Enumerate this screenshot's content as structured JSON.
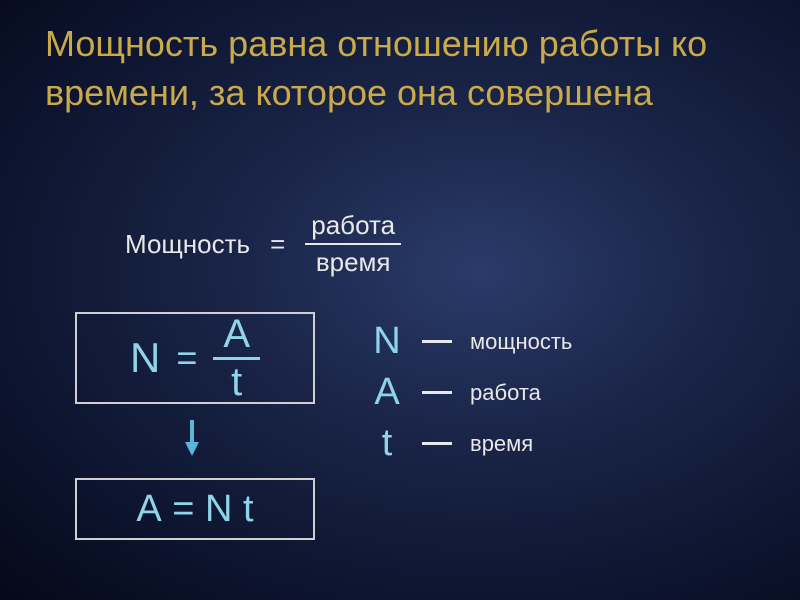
{
  "colors": {
    "heading": "#c9a94a",
    "text_white": "#e8e8e8",
    "text_cyan": "#8fd4e8",
    "bar_white": "#e8e8e8",
    "box_border": "#cfcfcf",
    "arrow": "#5bb5d8"
  },
  "heading": "Мощность равна  отношению работы ко времени, за которое она совершена",
  "word_formula": {
    "lhs": "Мощность",
    "eq": "=",
    "numerator": "работа",
    "denominator": "время"
  },
  "formula1": {
    "lhs": "N",
    "eq": "=",
    "numerator": "А",
    "denominator": "t"
  },
  "formula2": "А =  N t",
  "legend": [
    {
      "symbol": "N",
      "name": "мощность"
    },
    {
      "symbol": "А",
      "name": "работа"
    },
    {
      "symbol": "t",
      "name": "время"
    }
  ],
  "typography": {
    "heading_fontsize": 36,
    "word_formula_fontsize": 26,
    "formula_fontsize": 40,
    "legend_symbol_fontsize": 38,
    "legend_name_fontsize": 22
  }
}
